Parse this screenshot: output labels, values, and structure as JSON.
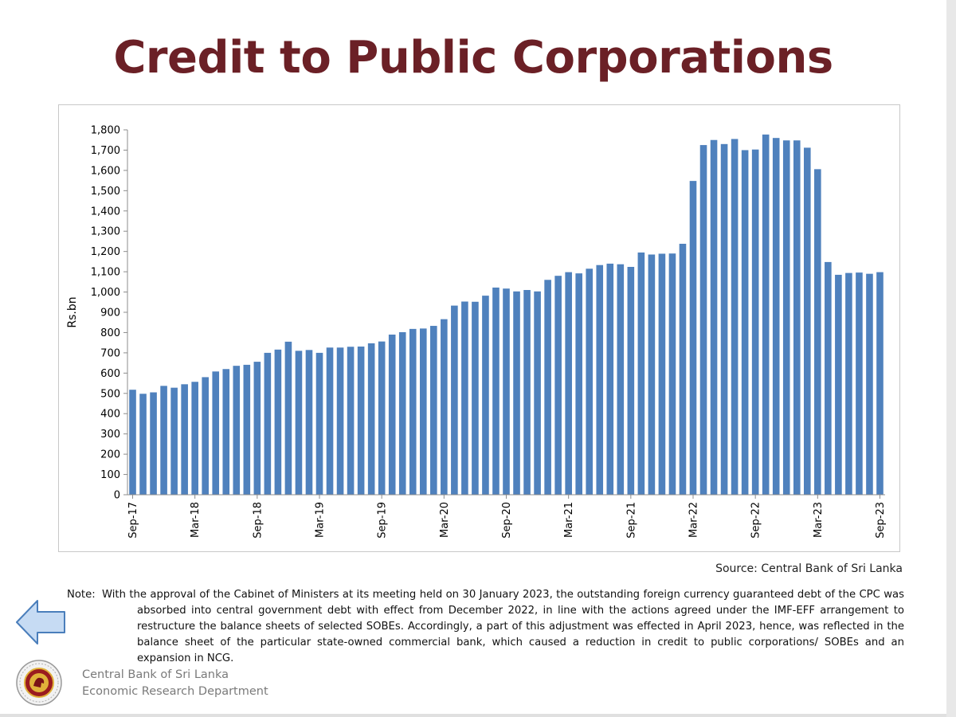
{
  "title": "Credit to Public Corporations",
  "source": "Source: Central Bank of Sri Lanka",
  "note": {
    "label": "Note:",
    "text": "With the approval of the Cabinet of Ministers at its meeting held on 30 January 2023, the outstanding foreign currency guaranteed debt of the CPC was absorbed into central government debt with effect from December 2022, in line with the actions agreed under the IMF-EFF arrangement to restructure the balance sheets of selected SOBEs. Accordingly, a part of this adjustment was effected in April 2023, hence, was reflected in the balance sheet of the particular state-owned commercial bank, which caused a reduction in credit to public corporations/ SOBEs and an expansion in NCG."
  },
  "organization": {
    "name": "Central Bank of Sri Lanka",
    "department": "Economic Research Department"
  },
  "icons": {
    "back": "left-arrow-icon",
    "logo": "central-bank-seal-icon"
  },
  "colors": {
    "title": "#6b2026",
    "bar": "#4f81bd",
    "arrow_fill": "#c6dbf3",
    "arrow_stroke": "#4a7ebb"
  },
  "chart_data": {
    "type": "bar",
    "title": "",
    "xlabel": "",
    "ylabel": "Rs.bn",
    "ylim": [
      0,
      1800
    ],
    "yticks": [
      0,
      100,
      200,
      300,
      400,
      500,
      600,
      700,
      800,
      900,
      1000,
      1100,
      1200,
      1300,
      1400,
      1500,
      1600,
      1700,
      1800
    ],
    "ytick_labels": [
      "0",
      "100",
      "200",
      "300",
      "400",
      "500",
      "600",
      "700",
      "800",
      "900",
      "1,000",
      "1,100",
      "1,200",
      "1,300",
      "1,400",
      "1,500",
      "1,600",
      "1,700",
      "1,800"
    ],
    "grid": false,
    "legend": "none",
    "categories": [
      "Sep-17",
      "Oct-17",
      "Nov-17",
      "Dec-17",
      "Jan-18",
      "Feb-18",
      "Mar-18",
      "Apr-18",
      "May-18",
      "Jun-18",
      "Jul-18",
      "Aug-18",
      "Sep-18",
      "Oct-18",
      "Nov-18",
      "Dec-18",
      "Jan-19",
      "Feb-19",
      "Mar-19",
      "Apr-19",
      "May-19",
      "Jun-19",
      "Jul-19",
      "Aug-19",
      "Sep-19",
      "Oct-19",
      "Nov-19",
      "Dec-19",
      "Jan-20",
      "Feb-20",
      "Mar-20",
      "Apr-20",
      "May-20",
      "Jun-20",
      "Jul-20",
      "Aug-20",
      "Sep-20",
      "Oct-20",
      "Nov-20",
      "Dec-20",
      "Jan-21",
      "Feb-21",
      "Mar-21",
      "Apr-21",
      "May-21",
      "Jun-21",
      "Jul-21",
      "Aug-21",
      "Sep-21",
      "Oct-21",
      "Nov-21",
      "Dec-21",
      "Jan-22",
      "Feb-22",
      "Mar-22",
      "Apr-22",
      "May-22",
      "Jun-22",
      "Jul-22",
      "Aug-22",
      "Sep-22",
      "Oct-22",
      "Nov-22",
      "Dec-22",
      "Jan-23",
      "Feb-23",
      "Mar-23",
      "Apr-23",
      "May-23",
      "Jun-23",
      "Jul-23",
      "Aug-23",
      "Sep-23"
    ],
    "x_tick_labels": [
      "Sep-17",
      "Mar-18",
      "Sep-18",
      "Mar-19",
      "Sep-19",
      "Mar-20",
      "Sep-20",
      "Mar-21",
      "Sep-21",
      "Mar-22",
      "Sep-22",
      "Mar-23",
      "Sep-23"
    ],
    "series": [
      {
        "values": [
          518,
          498,
          505,
          537,
          528,
          545,
          557,
          580,
          608,
          620,
          636,
          641,
          656,
          700,
          716,
          755,
          710,
          714,
          700,
          726,
          726,
          730,
          731,
          747,
          756,
          790,
          802,
          818,
          820,
          833,
          866,
          933,
          953,
          952,
          982,
          1022,
          1017,
          1003,
          1010,
          1003,
          1060,
          1080,
          1098,
          1092,
          1115,
          1133,
          1140,
          1137,
          1124,
          1195,
          1185,
          1189,
          1190,
          1238,
          1548,
          1725,
          1750,
          1730,
          1755,
          1700,
          1703,
          1777,
          1760,
          1748,
          1748,
          1712,
          1606,
          1148,
          1085,
          1094,
          1096,
          1090,
          1098
        ]
      }
    ]
  }
}
